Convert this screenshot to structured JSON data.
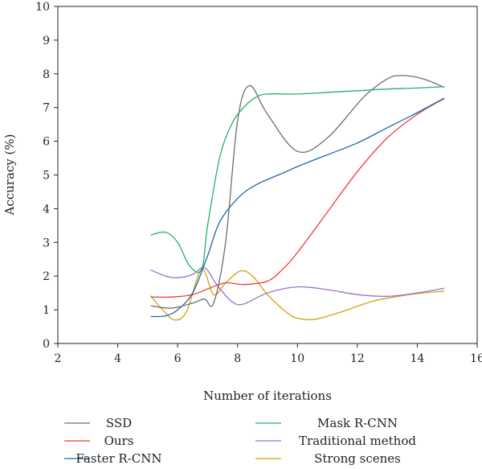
{
  "chart_data": {
    "type": "line",
    "title": "",
    "xlabel": "Number of iterations",
    "ylabel": "Accuracy (%)",
    "xlim": [
      2,
      16
    ],
    "ylim": [
      0,
      10
    ],
    "xticks": [
      2,
      4,
      6,
      8,
      10,
      12,
      14,
      16
    ],
    "yticks": [
      0,
      1,
      2,
      3,
      4,
      5,
      6,
      7,
      8,
      9,
      10
    ],
    "grid": false,
    "legend_position": "bottom",
    "series": [
      {
        "name": "SSD",
        "color": "#6e6e6e",
        "x": [
          5.1,
          5.8,
          6.5,
          6.9,
          7.2,
          7.6,
          8.0,
          8.4,
          9.0,
          10.0,
          11.0,
          12.2,
          13.0,
          13.5,
          14.2,
          14.9
        ],
        "y": [
          1.12,
          1.05,
          1.2,
          1.32,
          1.2,
          3.0,
          6.6,
          7.65,
          6.8,
          5.7,
          6.1,
          7.3,
          7.85,
          7.95,
          7.85,
          7.6
        ]
      },
      {
        "name": "Ours",
        "color": "#f03c3c",
        "x": [
          5.1,
          5.8,
          6.5,
          7.0,
          7.6,
          8.2,
          9.0,
          9.5,
          10.0,
          11.0,
          12.0,
          13.0,
          14.0,
          14.9
        ],
        "y": [
          1.38,
          1.38,
          1.45,
          1.62,
          1.8,
          1.75,
          1.85,
          2.2,
          2.7,
          3.9,
          5.1,
          6.1,
          6.8,
          7.27
        ]
      },
      {
        "name": "Faster R-CNN",
        "color": "#2166b0",
        "x": [
          5.1,
          5.6,
          6.0,
          6.5,
          7.0,
          7.4,
          8.0,
          8.6,
          9.5,
          10.0,
          11.0,
          12.0,
          13.0,
          14.0,
          14.9
        ],
        "y": [
          0.8,
          0.82,
          1.0,
          1.5,
          2.6,
          3.6,
          4.3,
          4.7,
          5.05,
          5.25,
          5.6,
          5.95,
          6.4,
          6.85,
          7.28
        ]
      },
      {
        "name": "Mask R-CNN",
        "color": "#24b366",
        "x": [
          5.1,
          5.6,
          6.0,
          6.4,
          6.8,
          7.0,
          7.4,
          7.8,
          8.2,
          8.6,
          9.0,
          10.0,
          11.0,
          12.0,
          13.0,
          14.0,
          14.9
        ],
        "y": [
          3.22,
          3.3,
          3.0,
          2.3,
          2.2,
          3.5,
          5.5,
          6.5,
          7.0,
          7.3,
          7.4,
          7.4,
          7.45,
          7.5,
          7.55,
          7.58,
          7.62
        ]
      },
      {
        "name": "Traditional method",
        "color": "#9b6fd4",
        "x": [
          5.1,
          5.6,
          6.0,
          6.5,
          6.9,
          7.3,
          7.8,
          8.2,
          9.0,
          10.0,
          11.0,
          12.0,
          13.0,
          14.0,
          14.9
        ],
        "y": [
          2.18,
          2.0,
          1.95,
          2.05,
          2.25,
          1.75,
          1.25,
          1.17,
          1.5,
          1.68,
          1.6,
          1.45,
          1.4,
          1.5,
          1.64
        ]
      },
      {
        "name": "Strong scenes",
        "color": "#d4a20a",
        "x": [
          5.1,
          5.5,
          5.9,
          6.3,
          6.8,
          7.2,
          7.6,
          8.1,
          8.5,
          9.0,
          9.6,
          10.0,
          10.6,
          11.5,
          12.5,
          13.5,
          14.2,
          14.9
        ],
        "y": [
          1.42,
          1.0,
          0.7,
          0.95,
          2.2,
          1.45,
          1.8,
          2.15,
          2.0,
          1.45,
          0.95,
          0.75,
          0.72,
          0.95,
          1.25,
          1.42,
          1.5,
          1.55
        ]
      }
    ]
  }
}
